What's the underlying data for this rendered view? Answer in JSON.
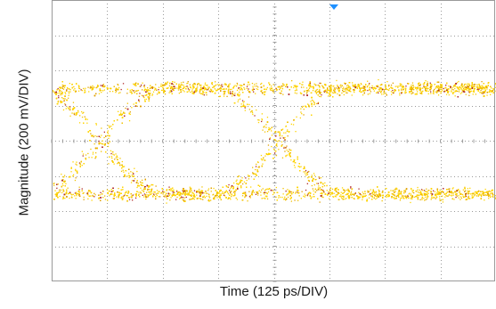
{
  "chart_data": {
    "type": "eye-diagram",
    "xlabel": "Time (125 ps/DIV)",
    "ylabel": "Magnitude (200 mV/DIV)",
    "x_divisions": 8,
    "y_divisions": 8,
    "x_per_div_ps": 125,
    "y_per_div_mV": 200,
    "grid": true,
    "unit_interval_ps": 400,
    "levels_mV": {
      "high": 300,
      "low": -300
    },
    "crossings": [
      {
        "time_ps": 110,
        "level_mV": 0
      },
      {
        "time_ps": 510,
        "level_mV": 0
      }
    ],
    "trace_colors": [
      "#ffd400",
      "#f2c200",
      "#e0a000",
      "#b02a2a"
    ],
    "background_color": "#ffffff",
    "grid_color": "#9a9a9a",
    "trigger_marker_color": "#1e90ff"
  }
}
